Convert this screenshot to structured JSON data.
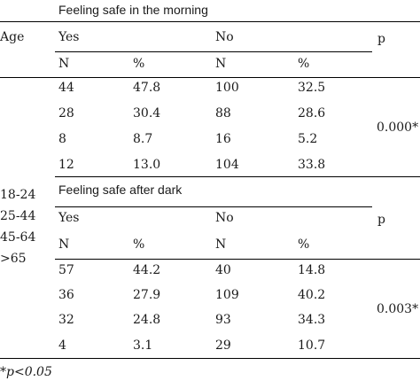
{
  "header": {
    "age_label": "Age",
    "p_label": "p"
  },
  "sections": [
    {
      "title": "Feeling safe in the morning",
      "yes_label": "Yes",
      "no_label": "No",
      "p_label": "p",
      "col_n": "N",
      "col_pct": "%",
      "rows": [
        {
          "yes_n": "44",
          "yes_pct": "47.8",
          "no_n": "100",
          "no_pct": "32.5"
        },
        {
          "yes_n": "28",
          "yes_pct": "30.4",
          "no_n": "88",
          "no_pct": "28.6"
        },
        {
          "yes_n": "8",
          "yes_pct": "8.7",
          "no_n": "16",
          "no_pct": "5.2"
        },
        {
          "yes_n": "12",
          "yes_pct": "13.0",
          "no_n": "104",
          "no_pct": "33.8"
        }
      ],
      "p_value": "0.000*"
    },
    {
      "title": "Feeling safe after dark",
      "yes_label": "Yes",
      "no_label": "No",
      "p_label": "p",
      "col_n": "N",
      "col_pct": "%",
      "rows": [
        {
          "yes_n": "57",
          "yes_pct": "44.2",
          "no_n": "40",
          "no_pct": "14.8"
        },
        {
          "yes_n": "36",
          "yes_pct": "27.9",
          "no_n": "109",
          "no_pct": "40.2"
        },
        {
          "yes_n": "32",
          "yes_pct": "24.8",
          "no_n": "93",
          "no_pct": "34.3"
        },
        {
          "yes_n": "4",
          "yes_pct": "3.1",
          "no_n": "29",
          "no_pct": "10.7"
        }
      ],
      "p_value": "0.003*"
    }
  ],
  "age_groups": [
    "18-24",
    "25-44",
    "45-64",
    ">65"
  ],
  "footnote": "*p<0.05"
}
